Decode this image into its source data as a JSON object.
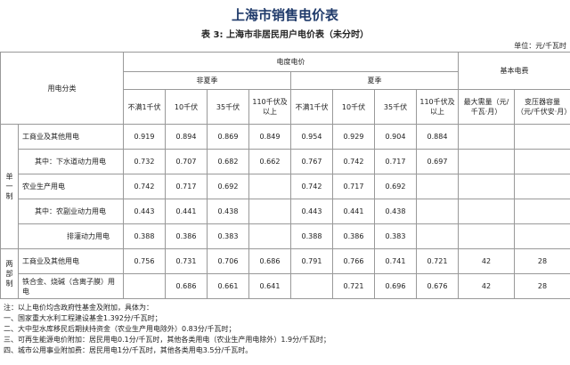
{
  "header": {
    "title": "上海市销售电价表",
    "subtitle": "表 3: 上海市非居民用户电价表（未分时）",
    "unit": "单位：元/千瓦时"
  },
  "table": {
    "category_header": "用电分类",
    "energy_header": "电度电价",
    "basic_header": "基本电费",
    "seasons": [
      "非夏季",
      "夏季"
    ],
    "columns": [
      "不满1千伏",
      "10千伏",
      "35千伏",
      "110千伏及以上",
      "不满1千伏",
      "10千伏",
      "35千伏",
      "110千伏及以上"
    ],
    "basic_columns": [
      "最大需量（元/千瓦·月）",
      "变压器容量（元/千伏安·月）"
    ],
    "groups": [
      {
        "label": "单一制",
        "rows": [
          {
            "label": "工商业及其他用电",
            "values": [
              "0.919",
              "0.894",
              "0.869",
              "0.849",
              "0.954",
              "0.929",
              "0.904",
              "0.884",
              null,
              null
            ]
          },
          {
            "label": "其中：下水道动力用电",
            "values": [
              "0.732",
              "0.707",
              "0.682",
              "0.662",
              "0.767",
              "0.742",
              "0.717",
              "0.697",
              null,
              null
            ]
          },
          {
            "label": "农业生产用电",
            "values": [
              "0.742",
              "0.717",
              "0.692",
              null,
              "0.742",
              "0.717",
              "0.692",
              null,
              null,
              null
            ]
          },
          {
            "label": "其中：农副业动力用电",
            "values": [
              "0.443",
              "0.441",
              "0.438",
              null,
              "0.443",
              "0.441",
              "0.438",
              null,
              null,
              null
            ]
          },
          {
            "label": "排灌动力用电",
            "values": [
              "0.388",
              "0.386",
              "0.383",
              null,
              "0.388",
              "0.386",
              "0.383",
              null,
              null,
              null
            ]
          }
        ]
      },
      {
        "label": "两部制",
        "rows": [
          {
            "label": "工商业及其他用电",
            "values": [
              "0.756",
              "0.731",
              "0.706",
              "0.686",
              "0.791",
              "0.766",
              "0.741",
              "0.721",
              "42",
              "28"
            ]
          },
          {
            "label": "铁合金、烧碱（含离子膜）用电",
            "values": [
              null,
              "0.686",
              "0.661",
              "0.641",
              null,
              "0.721",
              "0.696",
              "0.676",
              "42",
              "28"
            ]
          }
        ]
      }
    ]
  },
  "notes": [
    "注：以上电价均含政府性基金及附加，具体为：",
    "一、国家重大水利工程建设基金1.392分/千瓦时；",
    "二、大中型水库移民后期扶持资金（农业生产用电除外）0.83分/千瓦时；",
    "三、可再生能源电价附加：居民用电0.1分/千瓦时，其他各类用电（农业生产用电除外）1.9分/千瓦时；",
    "四、城市公用事业附加费：居民用电1分/千瓦时，其他各类用电3.5分/千瓦时。"
  ]
}
